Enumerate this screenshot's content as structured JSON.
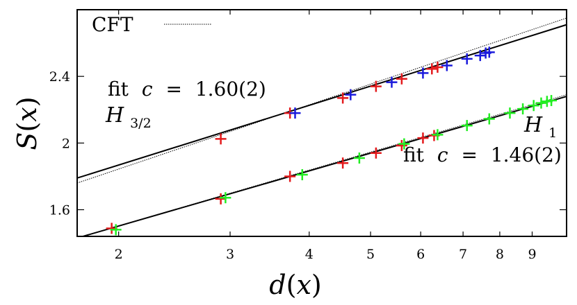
{
  "chart_data": {
    "type": "scatter",
    "xlabel_symbol": "d",
    "xlabel_arg": "x",
    "ylabel_symbol": "S",
    "ylabel_arg": "x",
    "x_scale": "log",
    "xlim": [
      1.72,
      10.2
    ],
    "ylim": [
      1.44,
      2.8
    ],
    "x_ticks": [
      "2",
      "3",
      "4",
      "5",
      "6",
      "7",
      "8",
      "9"
    ],
    "x_tick_values": [
      2,
      3,
      4,
      5,
      6,
      7,
      8,
      9
    ],
    "y_ticks": [
      "1.6",
      "2",
      "2.4"
    ],
    "y_tick_values": [
      1.6,
      2.0,
      2.4
    ],
    "legend": {
      "label": "CFT",
      "style": "dotted",
      "placement": "top-left"
    },
    "annotations": {
      "upper_fit": {
        "prefix": "fit",
        "variable": "c",
        "equals": "=",
        "value": "1.60(2)"
      },
      "upper_label": {
        "letter": "H",
        "subscript": "3/2"
      },
      "lower_label": {
        "letter": "H",
        "subscript": "1"
      },
      "lower_fit": {
        "prefix": "fit",
        "variable": "c",
        "equals": "=",
        "value": "1.46(2)"
      }
    },
    "fit_lines": [
      {
        "name": "fit H3/2",
        "style": "solid",
        "color": "#000000",
        "x": [
          1.72,
          10.2
        ],
        "y": [
          1.79,
          2.71
        ]
      },
      {
        "name": "fit H1",
        "style": "solid",
        "color": "#000000",
        "x": [
          1.72,
          10.2
        ],
        "y": [
          1.43,
          2.28
        ]
      }
    ],
    "cft_lines": [
      {
        "name": "CFT H3/2",
        "style": "dotted",
        "color": "#000000",
        "x": [
          1.72,
          10.2
        ],
        "y": [
          1.76,
          2.75
        ]
      },
      {
        "name": "CFT H1",
        "style": "dotted",
        "color": "#000000",
        "x": [
          1.72,
          10.2
        ],
        "y": [
          1.43,
          2.29
        ]
      }
    ],
    "series": [
      {
        "name": "H3/2 red",
        "color": "#e41a1c",
        "points": [
          [
            2.9,
            2.025
          ],
          [
            3.73,
            2.18
          ],
          [
            4.52,
            2.27
          ],
          [
            5.1,
            2.34
          ],
          [
            5.6,
            2.385
          ],
          [
            6.25,
            2.445
          ],
          [
            6.38,
            2.455
          ]
        ]
      },
      {
        "name": "H3/2 blue",
        "color": "#1a1adc",
        "points": [
          [
            3.8,
            2.18
          ],
          [
            4.65,
            2.29
          ],
          [
            5.4,
            2.365
          ],
          [
            6.05,
            2.42
          ],
          [
            6.6,
            2.465
          ],
          [
            7.1,
            2.505
          ],
          [
            7.45,
            2.525
          ],
          [
            7.6,
            2.54
          ],
          [
            7.7,
            2.545
          ]
        ]
      },
      {
        "name": "H1 red",
        "color": "#e41a1c",
        "points": [
          [
            1.95,
            1.488
          ],
          [
            2.9,
            1.665
          ],
          [
            3.73,
            1.8
          ],
          [
            4.52,
            1.88
          ],
          [
            5.1,
            1.94
          ],
          [
            5.6,
            1.985
          ],
          [
            6.05,
            2.03
          ],
          [
            6.3,
            2.045
          ]
        ]
      },
      {
        "name": "H1 green",
        "color": "#22ee22",
        "points": [
          [
            1.98,
            1.48
          ],
          [
            2.95,
            1.672
          ],
          [
            3.9,
            1.81
          ],
          [
            4.8,
            1.91
          ],
          [
            5.65,
            1.995
          ],
          [
            6.38,
            2.05
          ],
          [
            7.1,
            2.105
          ],
          [
            7.7,
            2.145
          ],
          [
            8.3,
            2.18
          ],
          [
            8.7,
            2.205
          ],
          [
            9.05,
            2.225
          ],
          [
            9.3,
            2.24
          ],
          [
            9.5,
            2.25
          ],
          [
            9.65,
            2.255
          ]
        ]
      }
    ]
  }
}
